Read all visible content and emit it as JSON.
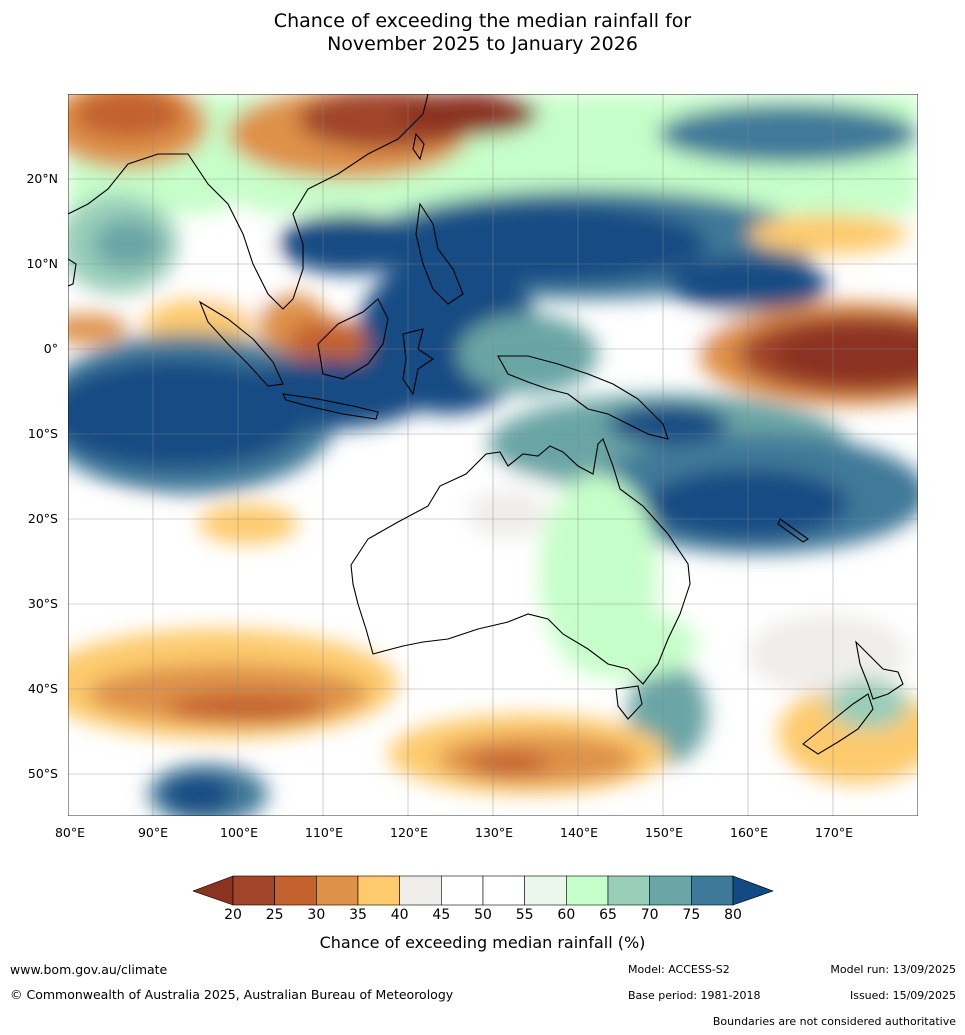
{
  "title": {
    "line1": "Chance of exceeding the median rainfall for",
    "line2": "November 2025 to January 2026"
  },
  "map": {
    "lon_range": [
      80,
      180
    ],
    "lat_range": [
      -55,
      30
    ],
    "lat_labels": [
      "20°N",
      "10°N",
      "0°",
      "10°S",
      "20°S",
      "30°S",
      "40°S",
      "50°S"
    ],
    "lon_labels": [
      "80°E",
      "90°E",
      "100°E",
      "110°E",
      "120°E",
      "130°E",
      "140°E",
      "150°E",
      "160°E",
      "170°E"
    ]
  },
  "legend": {
    "ticks": [
      "20",
      "25",
      "30",
      "35",
      "40",
      "45",
      "50",
      "55",
      "60",
      "65",
      "70",
      "75",
      "80"
    ],
    "colors": [
      "#a0452a",
      "#c3622e",
      "#de9149",
      "#fdca6d",
      "#efedea",
      "#ffffff",
      "#ffffff",
      "#eaf7ea",
      "#c6fec9",
      "#99ceb9",
      "#6ba5a5",
      "#3f7999"
    ],
    "under_color": "#8b3220",
    "over_color": "#124b83",
    "label": "Chance of exceeding median rainfall (%)"
  },
  "footer": {
    "website": "www.bom.gov.au/climate",
    "copyright": "© Commonwealth of Australia 2025, Australian Bureau of Meteorology",
    "model": "Model: ACCESS-S2",
    "base_period": "Base period: 1981-2018",
    "model_run": "Model run: 13/09/2025",
    "issued": "Issued: 15/09/2025",
    "disclaimer": "Boundaries are not considered authoritative"
  }
}
